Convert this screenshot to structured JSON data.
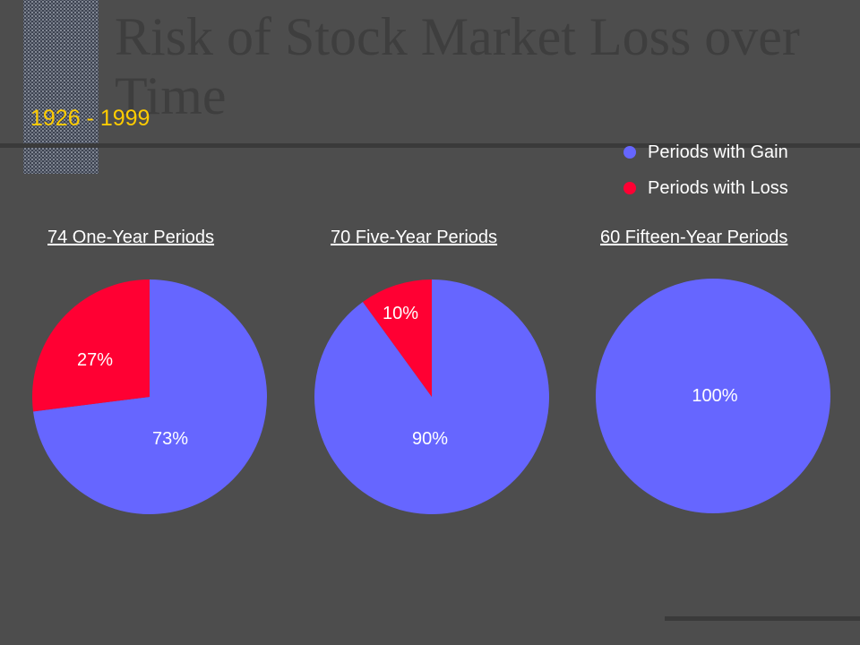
{
  "title": "Risk of Stock Market Loss over Time",
  "subtitle": "1926 - 1999",
  "colors": {
    "gain": "#6666ff",
    "loss": "#ff0033",
    "background": "#4d4d4d",
    "accent": "#ffcc00"
  },
  "legend": [
    {
      "label": "Periods with Gain",
      "color": "#6666ff"
    },
    {
      "label": "Periods with Loss",
      "color": "#ff0033"
    }
  ],
  "chart_data": [
    {
      "type": "pie",
      "title": "74 One-Year Periods",
      "categories": [
        "Periods with Gain",
        "Periods with Loss"
      ],
      "values": [
        73,
        27
      ],
      "data_labels": [
        "73%",
        "27%"
      ]
    },
    {
      "type": "pie",
      "title": "70 Five-Year Periods",
      "categories": [
        "Periods with Gain",
        "Periods with Loss"
      ],
      "values": [
        90,
        10
      ],
      "data_labels": [
        "90%",
        "10%"
      ]
    },
    {
      "type": "pie",
      "title": "60 Fifteen-Year Periods",
      "categories": [
        "Periods with Gain",
        "Periods with Loss"
      ],
      "values": [
        100,
        0
      ],
      "data_labels": [
        "100%",
        ""
      ]
    }
  ]
}
